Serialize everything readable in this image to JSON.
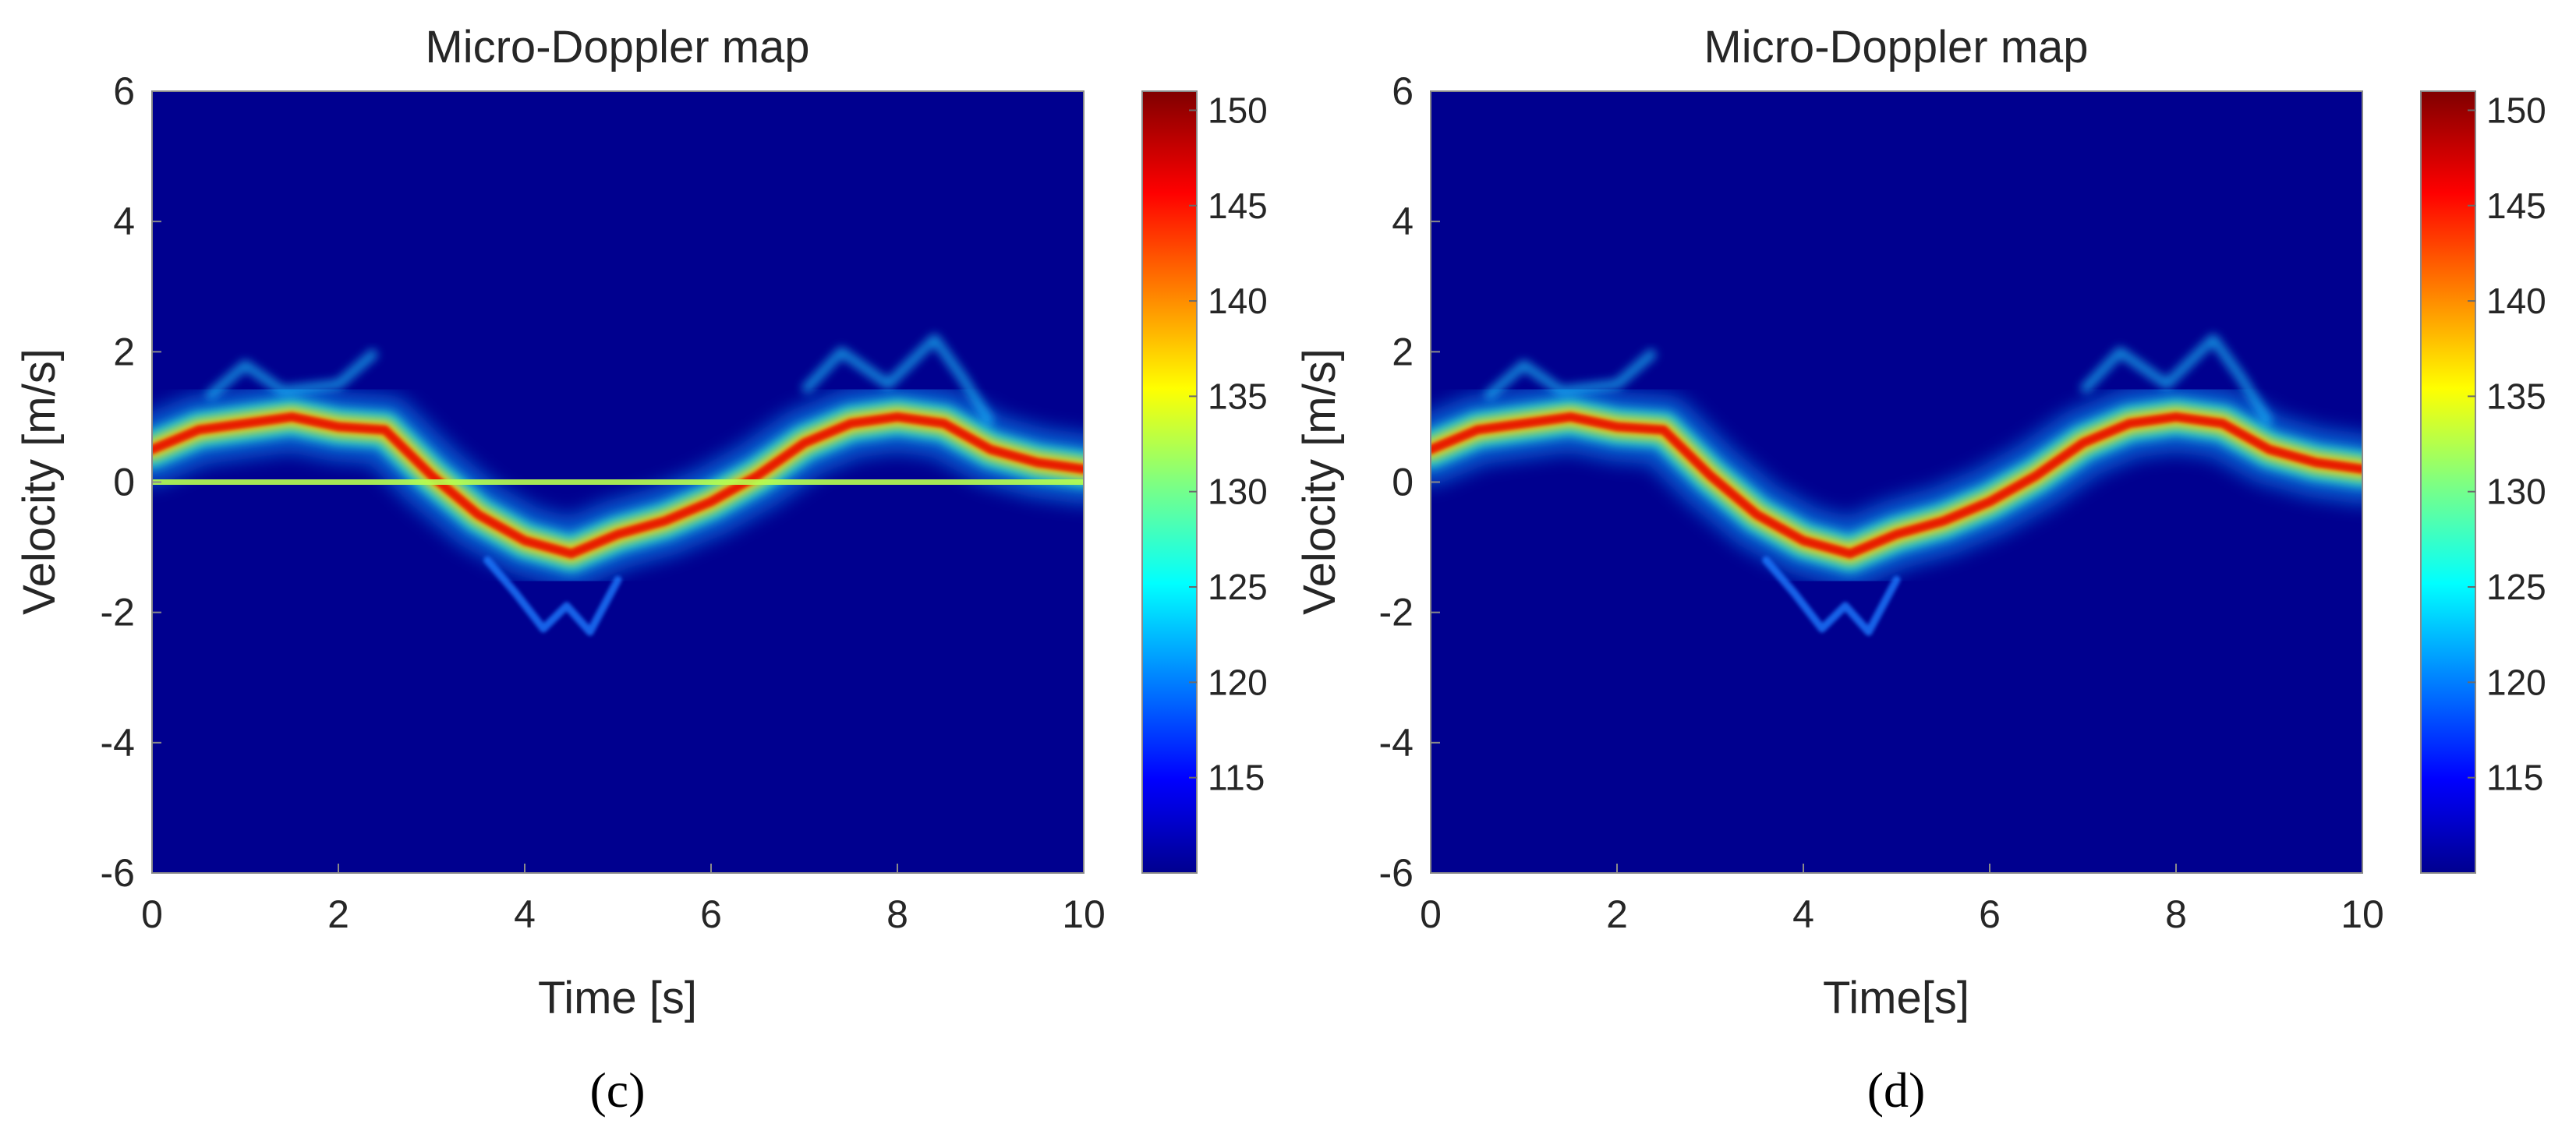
{
  "figure": {
    "panels": [
      "(c)",
      "(d)"
    ]
  },
  "chart_data": [
    {
      "type": "heatmap",
      "panel": "(c)",
      "title": "Micro-Doppler map",
      "xlabel": "Time [s]",
      "ylabel": "Velocity [m/s]",
      "xlim": [
        0,
        10
      ],
      "ylim": [
        -6,
        6
      ],
      "x_ticks": [
        "0",
        "2",
        "4",
        "6",
        "8",
        "10"
      ],
      "y_ticks": [
        "6",
        "4",
        "2",
        "0",
        "-2",
        "-4",
        "-6"
      ],
      "colorbar": {
        "colormap": "jet",
        "range": [
          110,
          151
        ],
        "ticks": [
          "150",
          "145",
          "140",
          "135",
          "130",
          "125",
          "120",
          "115"
        ]
      },
      "velocity_trace": {
        "time": [
          0,
          0.5,
          1,
          1.5,
          2,
          2.5,
          3,
          3.5,
          4,
          4.5,
          5,
          5.5,
          6,
          6.5,
          7,
          7.5,
          8,
          8.5,
          9,
          9.5,
          10
        ],
        "velocity": [
          0.5,
          0.8,
          0.9,
          1.0,
          0.85,
          0.8,
          0.1,
          -0.5,
          -0.9,
          -1.1,
          -0.8,
          -0.6,
          -0.3,
          0.1,
          0.6,
          0.9,
          1.0,
          0.9,
          0.5,
          0.3,
          0.2
        ]
      },
      "zero_velocity_clutter": true
    },
    {
      "type": "heatmap",
      "panel": "(d)",
      "title": "Micro-Doppler map",
      "xlabel": "Time[s]",
      "ylabel": "Velocity [m/s]",
      "xlim": [
        0,
        10
      ],
      "ylim": [
        -6,
        6
      ],
      "x_ticks": [
        "0",
        "2",
        "4",
        "6",
        "8",
        "10"
      ],
      "y_ticks": [
        "6",
        "4",
        "2",
        "0",
        "-2",
        "-4",
        "-6"
      ],
      "colorbar": {
        "colormap": "jet",
        "range": [
          110,
          151
        ],
        "ticks": [
          "150",
          "145",
          "140",
          "135",
          "130",
          "125",
          "120",
          "115"
        ]
      },
      "velocity_trace": {
        "time": [
          0,
          0.5,
          1,
          1.5,
          2,
          2.5,
          3,
          3.5,
          4,
          4.5,
          5,
          5.5,
          6,
          6.5,
          7,
          7.5,
          8,
          8.5,
          9,
          9.5,
          10
        ],
        "velocity": [
          0.5,
          0.8,
          0.9,
          1.0,
          0.85,
          0.8,
          0.1,
          -0.5,
          -0.9,
          -1.1,
          -0.8,
          -0.6,
          -0.3,
          0.1,
          0.6,
          0.9,
          1.0,
          0.9,
          0.5,
          0.3,
          0.2
        ]
      },
      "zero_velocity_clutter": false
    }
  ]
}
